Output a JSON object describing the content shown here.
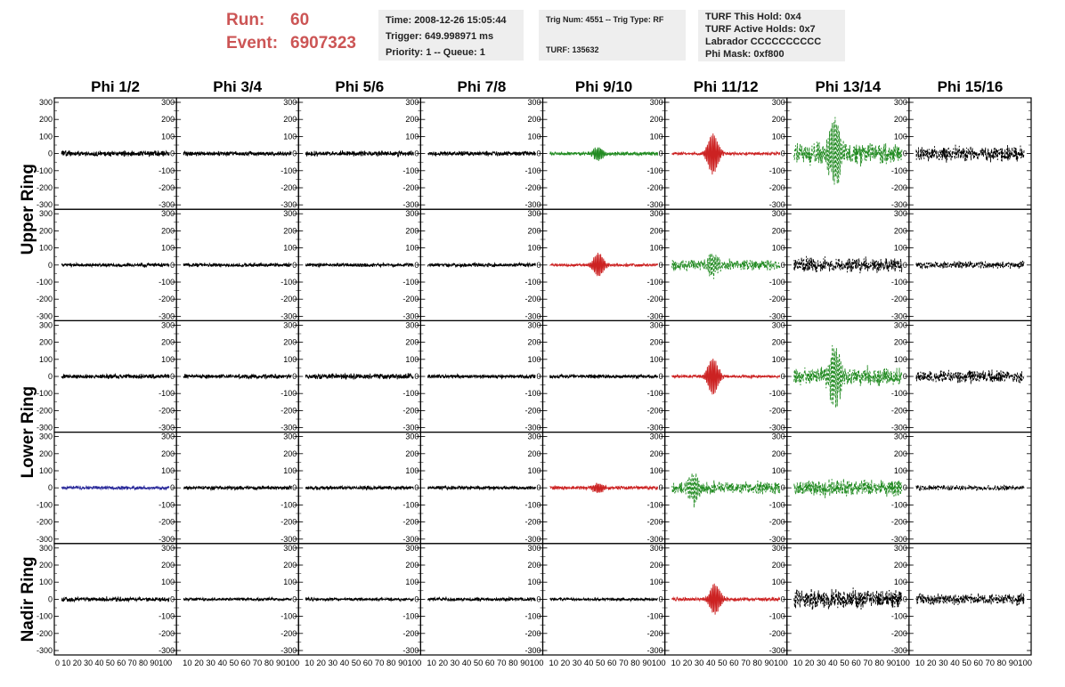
{
  "run": {
    "run_label": "Run:",
    "run_value": "60",
    "event_label": "Event:",
    "event_value": "6907323"
  },
  "info": {
    "box1": [
      "Time: 2008-12-26 15:05:44",
      "Trigger: 649.998971 ms",
      "Priority: 1 -- Queue: 1"
    ],
    "box2": [
      "Trig Num: 4551 -- Trig Type: RF",
      "",
      "TURF: 135632"
    ],
    "box3": [
      "TURF This Hold: 0x4",
      "TURF Active Holds: 0x7",
      "Labrador CCCCCCCCCC",
      "Phi Mask: 0xf800"
    ]
  },
  "colors": {
    "normal": "#000000",
    "green": "#228b22",
    "red": "#cc2222",
    "blue": "#2a2a9a",
    "run_text": "#cc5555",
    "box_bg": "#eeeeee"
  },
  "chart_data": {
    "type": "line",
    "column_titles": [
      "Phi 1/2",
      "Phi 3/4",
      "Phi 5/6",
      "Phi 7/8",
      "Phi 9/10",
      "Phi 11/12",
      "Phi 13/14",
      "Phi 15/16"
    ],
    "row_titles": [
      "Upper Ring",
      "Lower Ring",
      "Nadir Ring"
    ],
    "x_range": [
      0,
      100
    ],
    "y_range": [
      -300,
      300
    ],
    "y_ticks": [
      300,
      200,
      100,
      0,
      -100,
      -200,
      -300
    ],
    "y_tick_labels": [
      "300",
      "200",
      "100",
      "0",
      "-100",
      "-200",
      "-300"
    ],
    "x_tick_labels": [
      "0 10 20 30 40 50 60 70 80 90100",
      "10 20 30 40 50 60 70 80 90100",
      "10 20 30 40 50 60 70 80 90100",
      "10 20 30 40 50 60 70 80 90100",
      "10 20 30 40 50 60 70 80 90100",
      "10 20 30 40 50 60 70 80 90100",
      "10 20 30 40 50 60 70 80 90100",
      "10 20 30 40 50 60 70 80 90100"
    ],
    "panels": [
      [
        {
          "color": "normal",
          "style": "solid",
          "noise": 15,
          "pulse_amp": 0,
          "pulse_center": 0,
          "seed": 11
        },
        {
          "color": "normal",
          "style": "solid",
          "noise": 12,
          "pulse_amp": 0,
          "pulse_center": 0,
          "seed": 12
        },
        {
          "color": "normal",
          "style": "solid",
          "noise": 14,
          "pulse_amp": 0,
          "pulse_center": 0,
          "seed": 13
        },
        {
          "color": "normal",
          "style": "solid",
          "noise": 12,
          "pulse_amp": 0,
          "pulse_center": 0,
          "seed": 14
        },
        {
          "color": "green",
          "style": "solid",
          "noise": 10,
          "pulse_amp": 40,
          "pulse_center": 45,
          "seed": 15
        },
        {
          "color": "red",
          "style": "solid",
          "noise": 8,
          "pulse_amp": 120,
          "pulse_center": 38,
          "seed": 16
        },
        {
          "color": "green",
          "style": "dashed",
          "noise": 60,
          "pulse_amp": 200,
          "pulse_center": 38,
          "seed": 17
        },
        {
          "color": "normal",
          "style": "dashed",
          "noise": 40,
          "pulse_amp": 0,
          "pulse_center": 0,
          "seed": 18
        }
      ],
      [
        {
          "color": "normal",
          "style": "solid",
          "noise": 10,
          "pulse_amp": 0,
          "pulse_center": 0,
          "seed": 21
        },
        {
          "color": "normal",
          "style": "solid",
          "noise": 10,
          "pulse_amp": 0,
          "pulse_center": 0,
          "seed": 22
        },
        {
          "color": "normal",
          "style": "solid",
          "noise": 10,
          "pulse_amp": 0,
          "pulse_center": 0,
          "seed": 23
        },
        {
          "color": "normal",
          "style": "solid",
          "noise": 10,
          "pulse_amp": 0,
          "pulse_center": 0,
          "seed": 24
        },
        {
          "color": "red",
          "style": "solid",
          "noise": 8,
          "pulse_amp": 70,
          "pulse_center": 45,
          "seed": 25
        },
        {
          "color": "green",
          "style": "dashed",
          "noise": 30,
          "pulse_amp": 60,
          "pulse_center": 38,
          "seed": 26
        },
        {
          "color": "normal",
          "style": "dashed",
          "noise": 40,
          "pulse_amp": 0,
          "pulse_center": 0,
          "seed": 27
        },
        {
          "color": "normal",
          "style": "dashed",
          "noise": 20,
          "pulse_amp": 0,
          "pulse_center": 0,
          "seed": 28
        }
      ],
      [
        {
          "color": "normal",
          "style": "solid",
          "noise": 12,
          "pulse_amp": 0,
          "pulse_center": 0,
          "seed": 31
        },
        {
          "color": "normal",
          "style": "solid",
          "noise": 12,
          "pulse_amp": 0,
          "pulse_center": 0,
          "seed": 32
        },
        {
          "color": "normal",
          "style": "solid",
          "noise": 15,
          "pulse_amp": 0,
          "pulse_center": 0,
          "seed": 33
        },
        {
          "color": "normal",
          "style": "solid",
          "noise": 10,
          "pulse_amp": 0,
          "pulse_center": 0,
          "seed": 34
        },
        {
          "color": "normal",
          "style": "solid",
          "noise": 10,
          "pulse_amp": 0,
          "pulse_center": 0,
          "seed": 35
        },
        {
          "color": "red",
          "style": "solid",
          "noise": 8,
          "pulse_amp": 110,
          "pulse_center": 38,
          "seed": 36
        },
        {
          "color": "green",
          "style": "dashed",
          "noise": 50,
          "pulse_amp": 180,
          "pulse_center": 38,
          "seed": 37
        },
        {
          "color": "normal",
          "style": "dashed",
          "noise": 35,
          "pulse_amp": 0,
          "pulse_center": 0,
          "seed": 38
        }
      ],
      [
        {
          "color": "blue",
          "style": "solid",
          "noise": 10,
          "pulse_amp": 0,
          "pulse_center": 0,
          "seed": 41
        },
        {
          "color": "normal",
          "style": "solid",
          "noise": 10,
          "pulse_amp": 0,
          "pulse_center": 0,
          "seed": 42
        },
        {
          "color": "normal",
          "style": "solid",
          "noise": 10,
          "pulse_amp": 0,
          "pulse_center": 0,
          "seed": 43
        },
        {
          "color": "normal",
          "style": "solid",
          "noise": 10,
          "pulse_amp": 0,
          "pulse_center": 0,
          "seed": 44
        },
        {
          "color": "red",
          "style": "solid",
          "noise": 10,
          "pulse_amp": 30,
          "pulse_center": 45,
          "seed": 45
        },
        {
          "color": "green",
          "style": "dashed",
          "noise": 35,
          "pulse_amp": 80,
          "pulse_center": 20,
          "seed": 46
        },
        {
          "color": "green",
          "style": "dashed",
          "noise": 45,
          "pulse_amp": 0,
          "pulse_center": 0,
          "seed": 47
        },
        {
          "color": "normal",
          "style": "dashed",
          "noise": 15,
          "pulse_amp": 0,
          "pulse_center": 0,
          "seed": 48
        }
      ],
      [
        {
          "color": "normal",
          "style": "solid",
          "noise": 12,
          "pulse_amp": 0,
          "pulse_center": 0,
          "seed": 51
        },
        {
          "color": "normal",
          "style": "solid",
          "noise": 8,
          "pulse_amp": 0,
          "pulse_center": 0,
          "seed": 52
        },
        {
          "color": "normal",
          "style": "solid",
          "noise": 8,
          "pulse_amp": 0,
          "pulse_center": 0,
          "seed": 53
        },
        {
          "color": "normal",
          "style": "solid",
          "noise": 10,
          "pulse_amp": 0,
          "pulse_center": 0,
          "seed": 54
        },
        {
          "color": "normal",
          "style": "solid",
          "noise": 8,
          "pulse_amp": 0,
          "pulse_center": 0,
          "seed": 55
        },
        {
          "color": "red",
          "style": "solid",
          "noise": 10,
          "pulse_amp": 90,
          "pulse_center": 40,
          "seed": 56
        },
        {
          "color": "normal",
          "style": "dashed",
          "noise": 55,
          "pulse_amp": 0,
          "pulse_center": 0,
          "seed": 57
        },
        {
          "color": "normal",
          "style": "dashed",
          "noise": 30,
          "pulse_amp": 0,
          "pulse_center": 0,
          "seed": 58
        }
      ]
    ]
  }
}
